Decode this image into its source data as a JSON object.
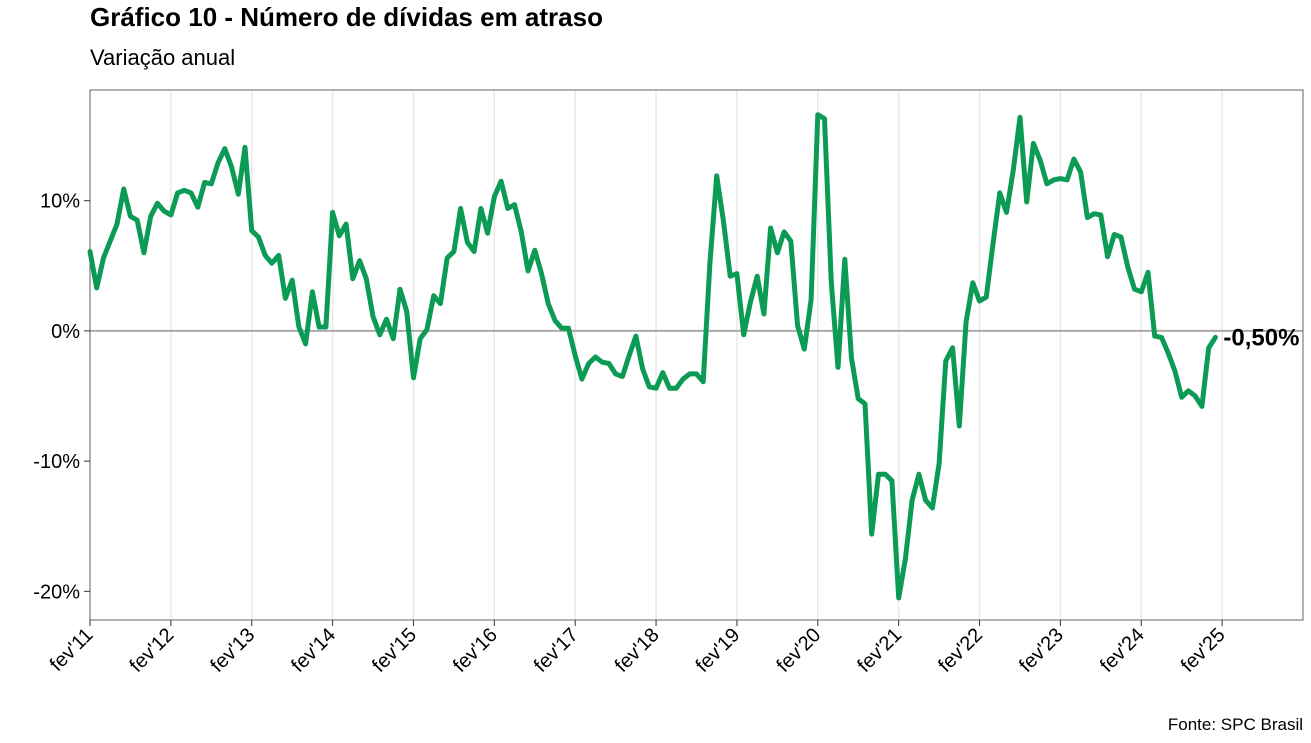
{
  "title": "Gráfico 10 - Número de dívidas em atraso",
  "subtitle": "Variação anual",
  "source": "Fonte: SPC Brasil",
  "colors": {
    "series": "#0b9b55",
    "zero_line": "#aaaaaa",
    "grid": "#e9e9e9",
    "frame": "#666666"
  },
  "chart_data": {
    "type": "line",
    "title": "Gráfico 10 - Número de dívidas em atraso",
    "subtitle": "Variação anual",
    "xlabel": "",
    "ylabel": "",
    "x_ticks": [
      "fev'11",
      "fev'12",
      "fev'13",
      "fev'14",
      "fev'15",
      "fev'16",
      "fev'17",
      "fev'18",
      "fev'19",
      "fev'20",
      "fev'21",
      "fev'22",
      "fev'23",
      "fev'24",
      "fev'25"
    ],
    "y_ticks": [
      10,
      0,
      -10,
      -20
    ],
    "y_tick_labels": [
      "10%",
      "0%",
      "-10%",
      "-20%"
    ],
    "ylim": [
      -22.2,
      18.5
    ],
    "xlim_months_from_fev11": [
      0,
      180
    ],
    "grid": true,
    "annotation": "-0,50%",
    "series": [
      {
        "values": [
          6.1,
          3.3,
          5.6,
          6.9,
          8.2,
          10.9,
          8.8,
          8.5,
          6.0,
          8.8,
          9.8,
          9.2,
          8.9,
          10.6,
          10.8,
          10.6,
          9.5,
          11.4,
          11.3,
          12.9,
          14.0,
          12.6,
          10.5,
          14.1,
          7.7,
          7.2,
          5.8,
          5.2,
          5.8,
          2.5,
          3.9,
          0.3,
          -1.0,
          3.0,
          0.3,
          0.3,
          9.1,
          7.3,
          8.2,
          4.0,
          5.4,
          4.0,
          1.1,
          -0.3,
          0.9,
          -0.6,
          3.2,
          1.5,
          -3.6,
          -0.6,
          0.1,
          2.7,
          2.1,
          5.6,
          6.1,
          9.4,
          6.8,
          6.1,
          9.4,
          7.5,
          10.3,
          11.5,
          9.4,
          9.7,
          7.6,
          4.6,
          6.2,
          4.4,
          2.1,
          0.8,
          0.2,
          0.2,
          -1.9,
          -3.7,
          -2.5,
          -2.0,
          -2.4,
          -2.5,
          -3.3,
          -3.5,
          -1.9,
          -0.4,
          -2.9,
          -4.3,
          -4.4,
          -3.2,
          -4.4,
          -4.4,
          -3.7,
          -3.3,
          -3.3,
          -3.9,
          5.3,
          11.9,
          8.4,
          4.2,
          4.4,
          -0.3,
          2.2,
          4.2,
          1.3,
          7.9,
          6.0,
          7.6,
          6.9,
          0.4,
          -1.4,
          2.4,
          16.6,
          16.3,
          3.7,
          -2.8,
          5.5,
          -2.1,
          -5.2,
          -5.6,
          -15.6,
          -11.0,
          -11.0,
          -11.5,
          -20.5,
          -17.5,
          -13.0,
          -11.0,
          -13.0,
          -13.6,
          -10.2,
          -2.3,
          -1.3,
          -7.3,
          0.7,
          3.7,
          2.3,
          2.6,
          6.7,
          10.6,
          9.1,
          12.3,
          16.4,
          9.9,
          14.4,
          13.1,
          11.3,
          11.6,
          11.7,
          11.6,
          13.2,
          12.2,
          8.7,
          9.0,
          8.9,
          5.7,
          7.4,
          7.2,
          4.9,
          3.2,
          3.0,
          4.5,
          -0.4,
          -0.5,
          -1.7,
          -3.1,
          -5.1,
          -4.6,
          -5.0,
          -5.8,
          -1.3,
          -0.5
        ]
      }
    ]
  }
}
